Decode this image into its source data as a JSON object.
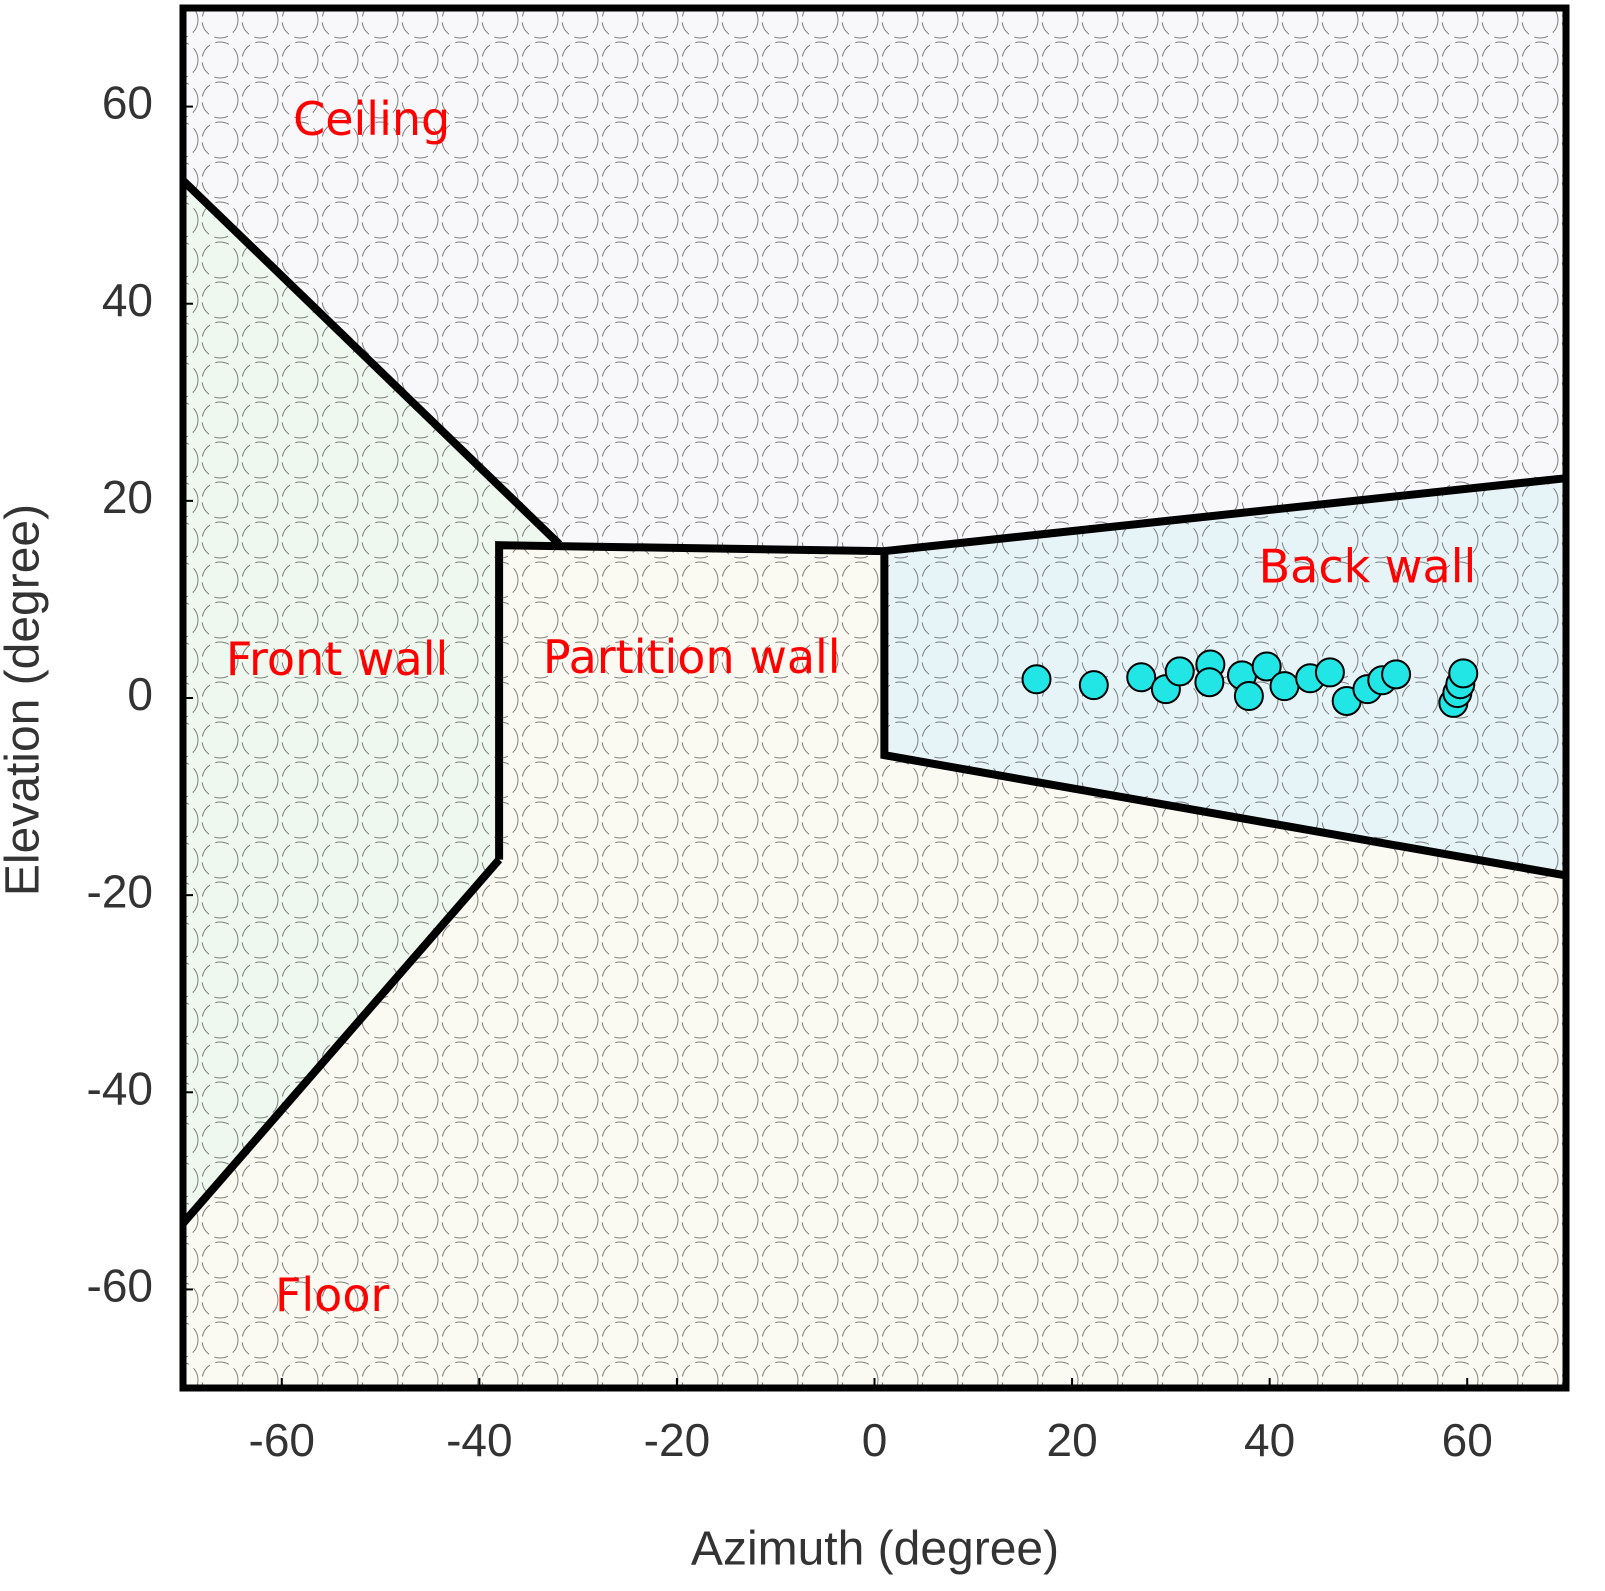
{
  "chart_data": {
    "type": "scatter",
    "xlabel": "Azimuth (degree)",
    "ylabel": "Elevation (degree)",
    "xlim": [
      -70,
      70
    ],
    "ylim": [
      -70,
      70
    ],
    "xticks": [
      -60,
      -40,
      -20,
      0,
      20,
      40,
      60
    ],
    "yticks": [
      -60,
      -40,
      -20,
      0,
      20,
      40,
      60
    ],
    "background": "#fafaf2",
    "areas": [
      {
        "color": "#f8f8fa",
        "x": [
          -70,
          70,
          70,
          1,
          -31.9,
          -70
        ],
        "y": [
          70,
          70,
          22.3,
          14.9,
          15.6,
          52.5
        ]
      },
      {
        "color": "#eef8ee",
        "x": [
          -70,
          -31.9,
          -38,
          -38,
          -70
        ],
        "y": [
          52.5,
          15.6,
          15.5,
          -16.4,
          -53.3
        ]
      },
      {
        "color": "#e6f4f8",
        "x": [
          1,
          70,
          70,
          1
        ],
        "y": [
          14.9,
          22.3,
          -18,
          -5.8
        ]
      }
    ],
    "boundaries": [
      {
        "x": [
          -70,
          -31.9
        ],
        "y": [
          52.5,
          15.6
        ]
      },
      {
        "x": [
          -38,
          -38,
          1,
          1,
          70
        ],
        "y": [
          -16.4,
          15.5,
          14.9,
          -5.8,
          -18
        ]
      },
      {
        "x": [
          1,
          70
        ],
        "y": [
          14.9,
          22.3
        ]
      },
      {
        "x": [
          -70,
          -38
        ],
        "y": [
          -53.3,
          -16.4
        ]
      }
    ],
    "labels": [
      {
        "text": "Ceiling",
        "x": -50.9,
        "y": 58.4
      },
      {
        "text": "Front wall",
        "x": -54.4,
        "y": 3.6
      },
      {
        "text": "Partition wall",
        "x": -18.5,
        "y": 3.8
      },
      {
        "text": "Back wall",
        "x": 49.9,
        "y": 13.0
      },
      {
        "text": "Floor",
        "x": -54.9,
        "y": -60.9
      }
    ],
    "label_color": "#ff0000",
    "color": "#22e5e5",
    "x": [
      16.4,
      22.2,
      27.0,
      29.5,
      30.9,
      34.0,
      33.9,
      37.2,
      37.9,
      39.7,
      41.5,
      44.1,
      46.1,
      47.8,
      49.9,
      51.4,
      52.8,
      58.6,
      59.0,
      59.3,
      59.6
    ],
    "values": [
      1.9,
      1.3,
      2.1,
      0.9,
      2.7,
      3.4,
      1.6,
      2.3,
      0.2,
      3.2,
      1.2,
      2.0,
      2.6,
      -0.3,
      0.9,
      1.8,
      2.4,
      -0.5,
      0.5,
      1.4,
      2.5
    ]
  }
}
